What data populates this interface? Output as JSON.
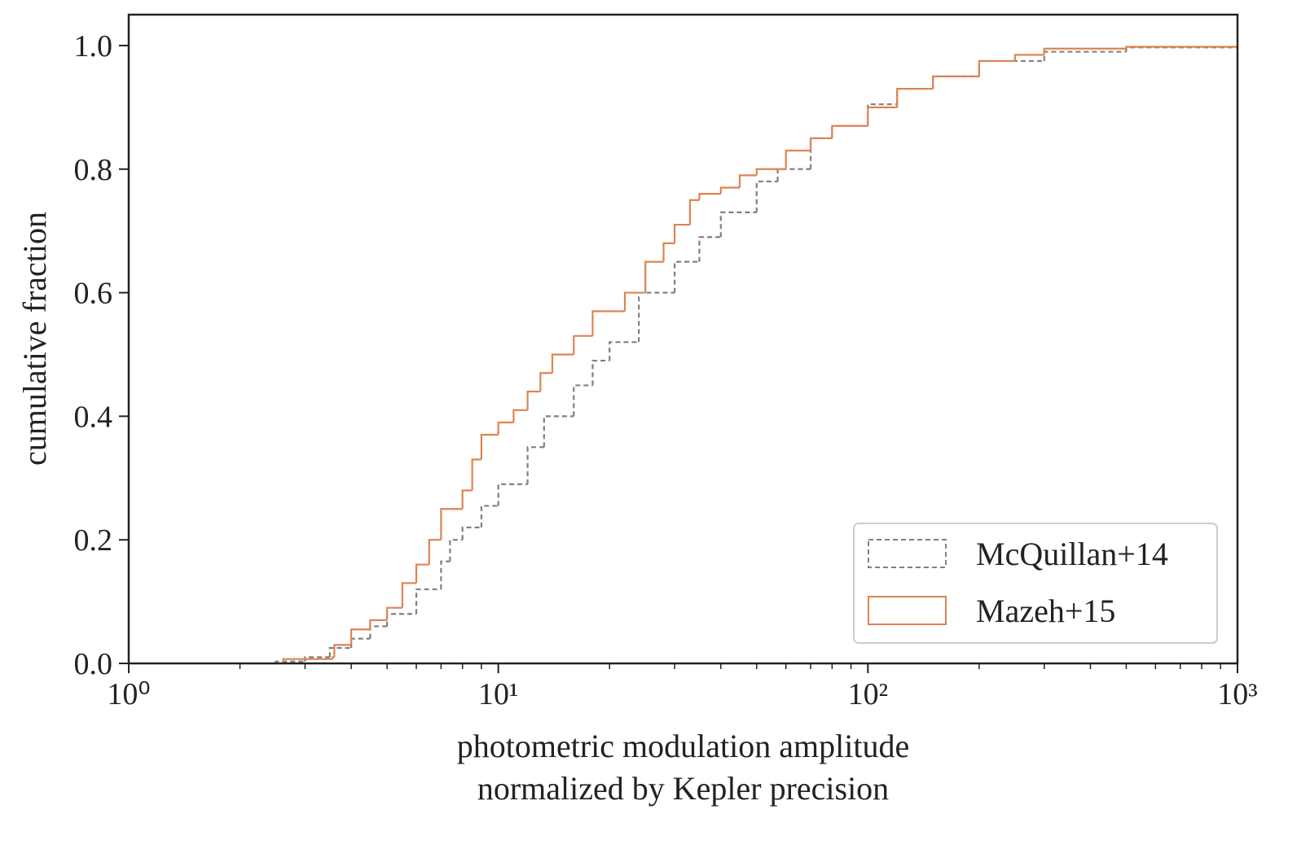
{
  "chart_data": {
    "type": "step",
    "xlabel": [
      "photometric modulation amplitude",
      "normalized by Kepler precision"
    ],
    "ylabel": "cumulative fraction",
    "xscale": "log",
    "xlim": [
      1,
      1000
    ],
    "xticks": [
      {
        "value": 1,
        "label": "10⁰"
      },
      {
        "value": 10,
        "label": "10¹"
      },
      {
        "value": 100,
        "label": "10²"
      },
      {
        "value": 1000,
        "label": "10³"
      }
    ],
    "ylim": [
      0,
      1.05
    ],
    "yticks": [
      {
        "value": 0,
        "label": "0.0"
      },
      0.2,
      0.4,
      0.6,
      0.8,
      {
        "value": 1,
        "label": "1.0"
      }
    ],
    "legend": "lower right",
    "series": [
      {
        "name": "McQuillan+14",
        "color": "#808080",
        "linestyle": "dashed",
        "x": [
          2.0,
          2.5,
          3,
          3.5,
          4,
          4.5,
          5,
          6,
          7,
          7.4,
          8,
          9,
          10,
          12,
          13.3,
          16,
          18,
          20,
          24,
          30,
          35,
          40,
          50,
          57,
          70,
          80,
          100,
          120,
          150,
          200,
          300,
          500,
          1000
        ],
        "values": [
          0.0,
          0.003,
          0.01,
          0.025,
          0.04,
          0.06,
          0.08,
          0.12,
          0.165,
          0.2,
          0.22,
          0.255,
          0.29,
          0.35,
          0.4,
          0.45,
          0.49,
          0.52,
          0.6,
          0.65,
          0.69,
          0.73,
          0.78,
          0.8,
          0.85,
          0.87,
          0.905,
          0.93,
          0.95,
          0.975,
          0.99,
          0.997,
          1.0
        ]
      },
      {
        "name": "Mazeh+15",
        "color": "#dd8452",
        "linestyle": "solid",
        "x": [
          2.62,
          3.56,
          3.6,
          4,
          4.5,
          5,
          5.5,
          6,
          6.5,
          7,
          8,
          8.5,
          9,
          10,
          11,
          12,
          13,
          14,
          16,
          18,
          22,
          25,
          28,
          30,
          33,
          35,
          40,
          45,
          50,
          60,
          70,
          80,
          100,
          120,
          150,
          200,
          250,
          300,
          500,
          1000
        ],
        "values": [
          0.007,
          0.01,
          0.03,
          0.055,
          0.07,
          0.09,
          0.13,
          0.16,
          0.2,
          0.25,
          0.28,
          0.33,
          0.37,
          0.39,
          0.41,
          0.44,
          0.47,
          0.5,
          0.53,
          0.57,
          0.6,
          0.65,
          0.68,
          0.71,
          0.75,
          0.76,
          0.77,
          0.79,
          0.8,
          0.83,
          0.85,
          0.87,
          0.9,
          0.93,
          0.95,
          0.975,
          0.985,
          0.995,
          0.998,
          1.0
        ]
      }
    ]
  }
}
